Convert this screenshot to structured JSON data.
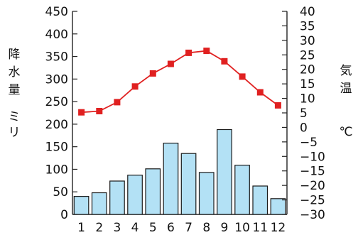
{
  "chart_data": {
    "type": "bar+line",
    "categories": [
      "1",
      "2",
      "3",
      "4",
      "5",
      "6",
      "7",
      "8",
      "9",
      "10",
      "11",
      "12"
    ],
    "precipitation": {
      "axis": "left",
      "values": [
        40,
        48,
        74,
        87,
        101,
        158,
        135,
        93,
        188,
        109,
        63,
        35
      ],
      "ylim": [
        0,
        450
      ],
      "ticks": [
        0,
        50,
        100,
        150,
        200,
        250,
        300,
        350,
        400,
        450
      ],
      "ylabel_chars": [
        "降",
        "水",
        "量"
      ],
      "unit_chars": [
        "ミ",
        "リ"
      ],
      "color": "#b3e1f5"
    },
    "temperature": {
      "axis": "right",
      "values": [
        5.2,
        5.6,
        8.7,
        14.1,
        18.6,
        21.9,
        25.7,
        26.4,
        22.8,
        17.5,
        12.1,
        7.6
      ],
      "ylim": [
        -30,
        40
      ],
      "ticks": [
        -30,
        -25,
        -20,
        -15,
        -10,
        -5,
        0,
        5,
        10,
        15,
        20,
        25,
        30,
        35,
        40
      ],
      "ylabel_chars": [
        "気",
        "温"
      ],
      "unit": "℃",
      "color": "#e02020"
    },
    "xlabel": "",
    "grid": false,
    "legend": "none"
  }
}
